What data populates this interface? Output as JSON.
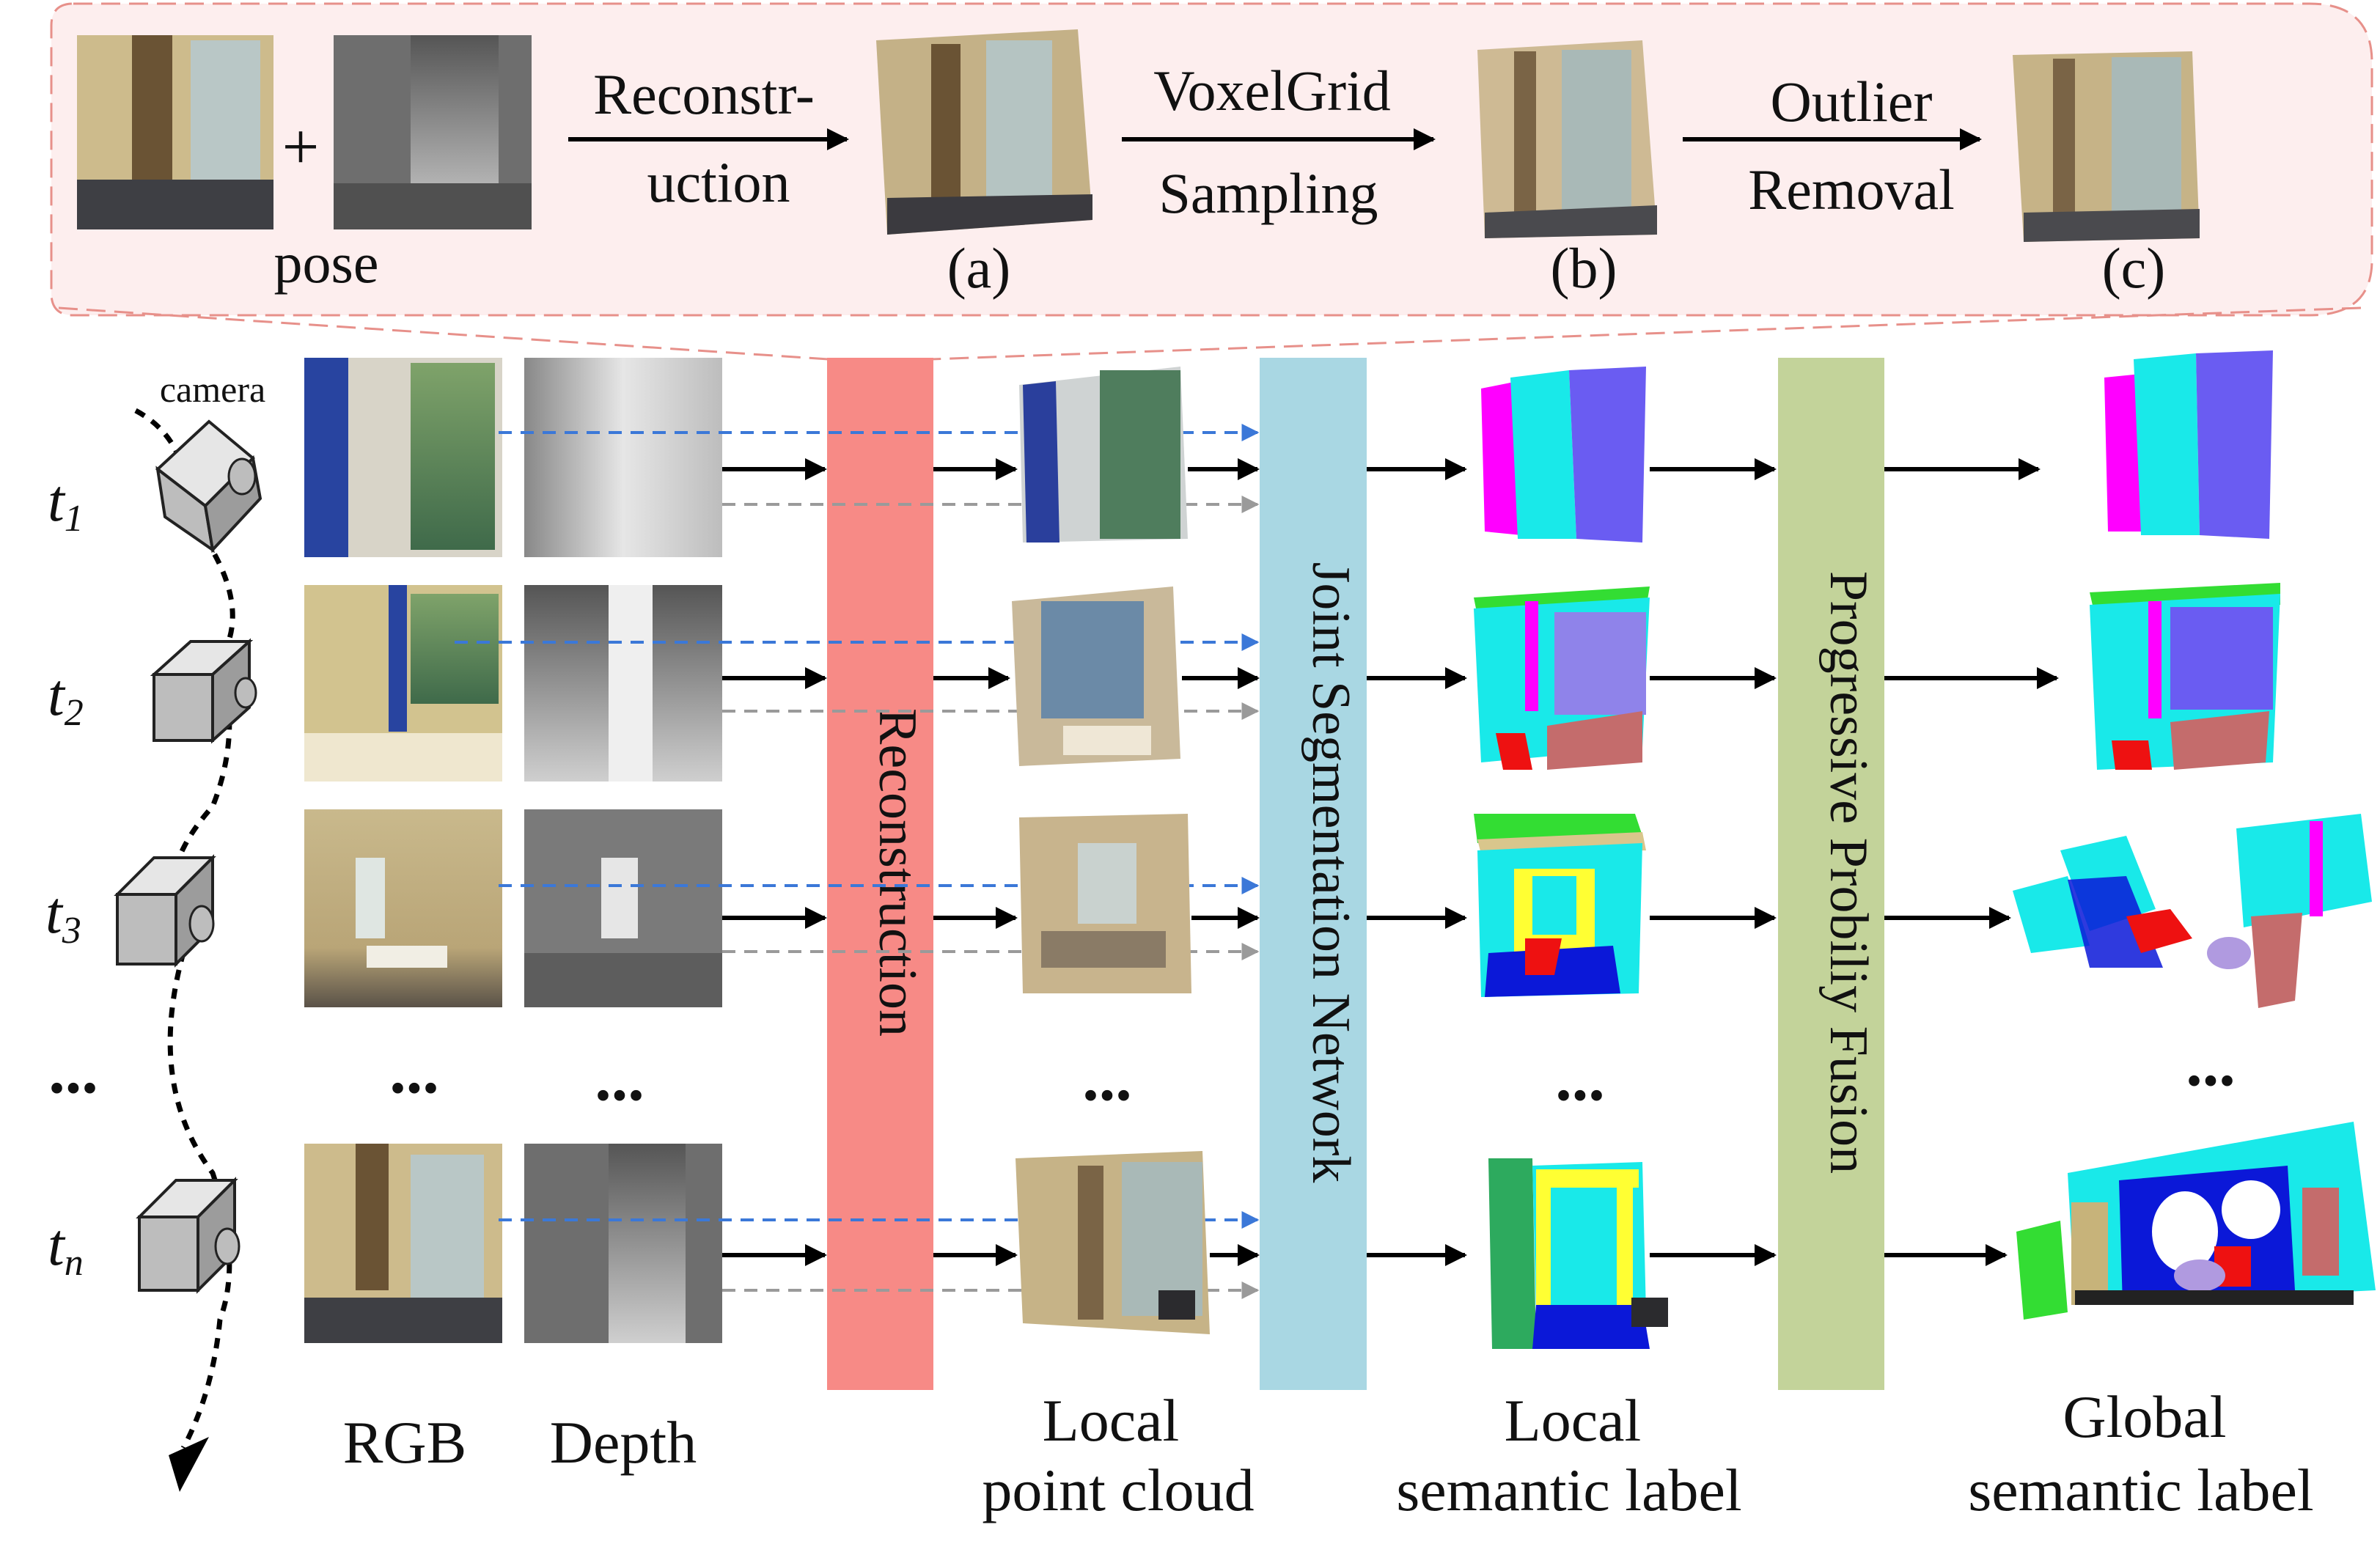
{
  "top_pipeline": {
    "plus": "+",
    "pose_label": "pose",
    "step1_line1": "Reconstr-",
    "step1_line2": "uction",
    "step2_line1": "VoxelGrid",
    "step2_line2": "Sampling",
    "step3_line1": "Outlier",
    "step3_line2": "Removal",
    "label_a": "(a)",
    "label_b": "(b)",
    "label_c": "(c)"
  },
  "camera_label": "camera",
  "time_rows": [
    {
      "t": "t",
      "sub": "1"
    },
    {
      "t": "t",
      "sub": "2"
    },
    {
      "t": "t",
      "sub": "3"
    },
    {
      "t": "t",
      "sub": "n"
    }
  ],
  "ellipsis": "...",
  "bars": {
    "reconstruction": "Reconstruction",
    "joint_segmentation": "Joint Segmentation Network",
    "progressive_fusion": "Progressive Probiliy Fusion"
  },
  "column_labels": {
    "rgb": "RGB",
    "depth": "Depth",
    "local_pc_line1": "Local",
    "local_pc_line2": "point cloud",
    "local_sem_line1": "Local",
    "local_sem_line2": "semantic label",
    "global_sem_line1": "Global",
    "global_sem_line2": "semantic label"
  },
  "colors": {
    "reconstruction_bar": "#f78a86",
    "segmentation_bar": "#a9d7e3",
    "fusion_bar": "#c3d39a",
    "top_panel_fill": "#fdeeee",
    "top_panel_border": "#e7908a",
    "blue_arrow": "#3b78d8",
    "gray_arrow": "#9a9a9a"
  }
}
